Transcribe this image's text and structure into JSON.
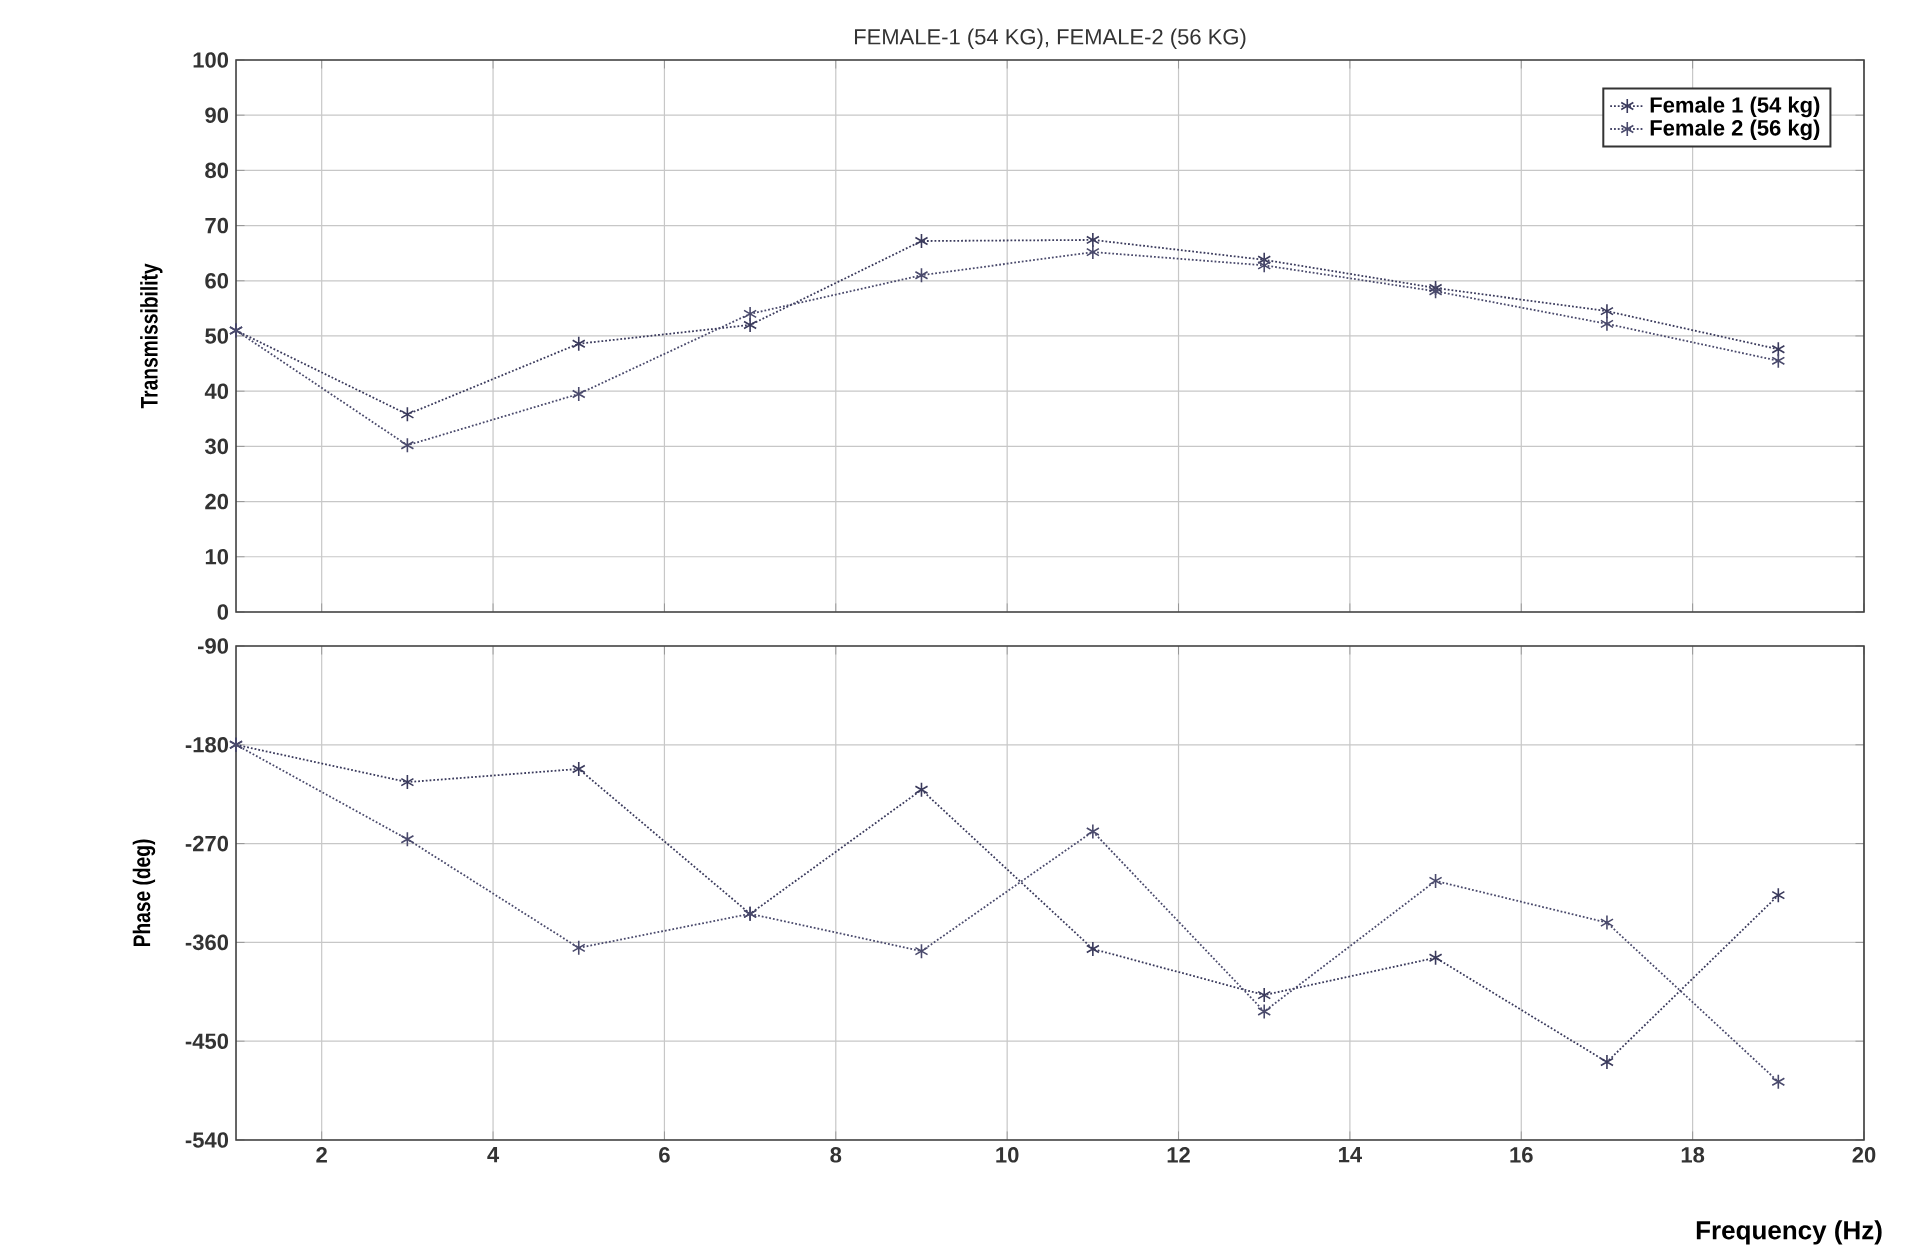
{
  "chart_data": [
    {
      "type": "line",
      "title": "FEMALE-1 (54 KG), FEMALE-2 (56 KG)",
      "ylabel": "Transmissibility",
      "x": [
        1,
        3,
        5,
        7,
        9,
        11,
        13,
        15,
        17,
        19
      ],
      "series": [
        {
          "name": "Female 1 (54 kg)",
          "color": "#3a3a5c",
          "values": [
            51,
            35.8,
            48.6,
            52,
            67.2,
            67.4,
            63.8,
            58.7,
            54.5,
            47.6
          ]
        },
        {
          "name": "Female 2 (56 kg)",
          "color": "#4a4a6c",
          "values": [
            51,
            30.2,
            39.5,
            54,
            61,
            65.2,
            62.8,
            58.1,
            52.2,
            45.5
          ]
        }
      ],
      "xlim": [
        1,
        20
      ],
      "xticks": [
        2,
        4,
        6,
        8,
        10,
        12,
        14,
        16,
        18,
        20
      ],
      "ylim": [
        0,
        100
      ],
      "yticks": [
        0,
        10,
        20,
        30,
        40,
        50,
        60,
        70,
        80,
        90,
        100
      ],
      "tick_labels": "y",
      "grid": true,
      "legend": "top right",
      "marker": "cross",
      "line_style": "dotted"
    },
    {
      "type": "line",
      "xlabel": "Frequency  (Hz)",
      "ylabel": "Phase (deg)",
      "x": [
        1,
        3,
        5,
        7,
        9,
        11,
        13,
        15,
        17,
        19
      ],
      "series": [
        {
          "color": "#3a3a5c",
          "values": [
            -180,
            -214,
            -202,
            -334,
            -221,
            -366,
            -408,
            -374,
            -469,
            -317
          ]
        },
        {
          "color": "#4a4a6c",
          "values": [
            -180,
            -266,
            -365,
            -334,
            -368,
            -259,
            -423,
            -304,
            -342,
            -487
          ]
        }
      ],
      "xlim": [
        1,
        20
      ],
      "xticks": [
        2,
        4,
        6,
        8,
        10,
        12,
        14,
        16,
        18,
        20
      ],
      "ylim": [
        -540,
        -90
      ],
      "yticks": [
        -540,
        -450,
        -360,
        -270,
        -180,
        -90
      ],
      "grid": true,
      "marker": "cross",
      "line_style": "dotted"
    }
  ]
}
